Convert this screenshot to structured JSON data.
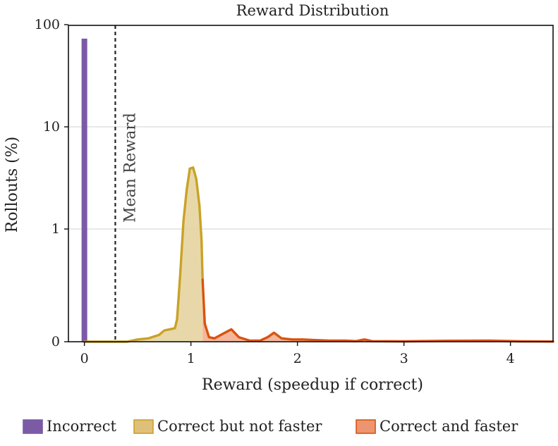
{
  "chart_data": {
    "type": "area",
    "title": "Reward Distribution",
    "xlabel": "Reward (speedup if correct)",
    "ylabel": "Rollouts (%)",
    "xlim": [
      -0.15,
      4.4
    ],
    "y_scale": "symlog",
    "y_ticks": [
      0,
      1,
      10,
      100
    ],
    "y_tick_labels": [
      "0",
      "1",
      "10",
      "100"
    ],
    "x_ticks": [
      0,
      1,
      2,
      3,
      4
    ],
    "x_tick_labels": [
      "0",
      "1",
      "2",
      "3",
      "4"
    ],
    "grid": "horizontal",
    "legend_position": "bottom",
    "mean_reward": 0.29,
    "mean_reward_label": "Mean Reward",
    "colors": {
      "incorrect": "#7b5aa6",
      "not_faster_line": "#c9a227",
      "not_faster_fill": "#e6d4a0",
      "faster_line": "#d9530f",
      "faster_fill": "#f4ae8f"
    },
    "series": [
      {
        "name": "Incorrect",
        "kind": "bar",
        "x": [
          0
        ],
        "values": [
          73
        ]
      },
      {
        "name": "Correct but not faster",
        "kind": "area",
        "points": [
          [
            0.0,
            0.0
          ],
          [
            0.3,
            0.0
          ],
          [
            0.4,
            0.0
          ],
          [
            0.5,
            0.02
          ],
          [
            0.6,
            0.03
          ],
          [
            0.7,
            0.06
          ],
          [
            0.75,
            0.1
          ],
          [
            0.8,
            0.11
          ],
          [
            0.85,
            0.12
          ],
          [
            0.87,
            0.2
          ],
          [
            0.9,
            0.6
          ],
          [
            0.93,
            1.2
          ],
          [
            0.96,
            2.4
          ],
          [
            0.99,
            3.9
          ],
          [
            1.02,
            4.0
          ],
          [
            1.05,
            3.1
          ],
          [
            1.08,
            1.7
          ],
          [
            1.1,
            0.9
          ],
          [
            1.11,
            0.55
          ]
        ]
      },
      {
        "name": "Correct and faster",
        "kind": "area",
        "points": [
          [
            1.11,
            0.55
          ],
          [
            1.13,
            0.16
          ],
          [
            1.17,
            0.04
          ],
          [
            1.22,
            0.03
          ],
          [
            1.3,
            0.07
          ],
          [
            1.38,
            0.11
          ],
          [
            1.45,
            0.04
          ],
          [
            1.55,
            0.01
          ],
          [
            1.65,
            0.01
          ],
          [
            1.72,
            0.04
          ],
          [
            1.78,
            0.08
          ],
          [
            1.85,
            0.03
          ],
          [
            1.95,
            0.02
          ],
          [
            2.05,
            0.02
          ],
          [
            2.15,
            0.015
          ],
          [
            2.3,
            0.01
          ],
          [
            2.45,
            0.01
          ],
          [
            2.55,
            0.005
          ],
          [
            2.63,
            0.02
          ],
          [
            2.7,
            0.005
          ],
          [
            3.0,
            0.003
          ],
          [
            3.4,
            0.008
          ],
          [
            3.8,
            0.01
          ],
          [
            4.1,
            0.003
          ],
          [
            4.4,
            0.002
          ]
        ]
      }
    ]
  }
}
